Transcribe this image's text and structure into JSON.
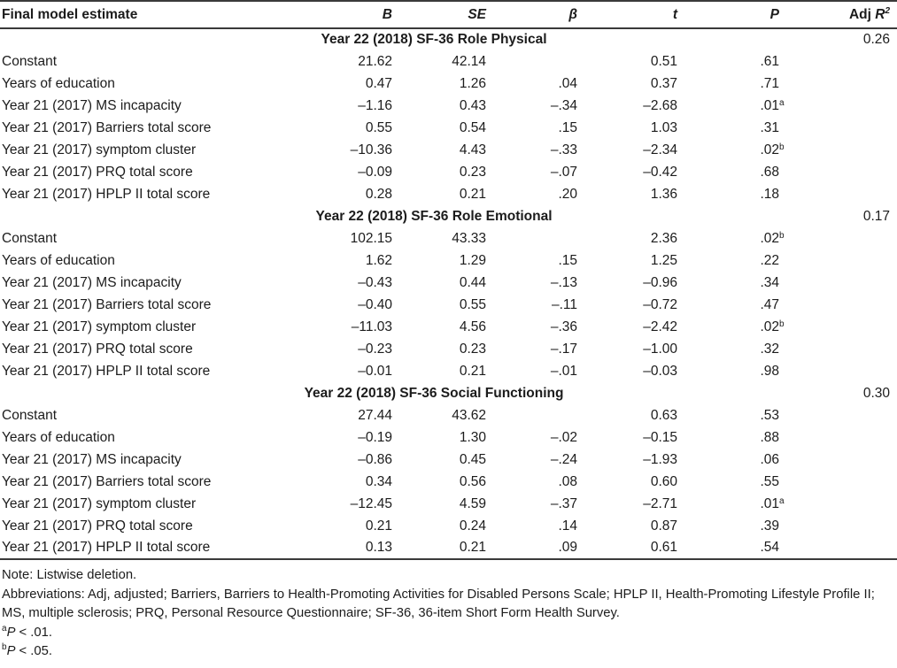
{
  "table": {
    "header": {
      "label": "Final model estimate",
      "b": "B",
      "se": "SE",
      "beta": "β",
      "t": "t",
      "p": "P",
      "adj": "Adj",
      "r": "R",
      "r_sup": "2"
    },
    "sections": [
      {
        "title": "Year 22 (2018) SF-36 Role Physical",
        "adj_r2": "0.26",
        "rows": [
          {
            "label": "Constant",
            "b": "21.62",
            "se": "42.14",
            "beta": "",
            "t": "0.51",
            "p": ".61",
            "p_sup": ""
          },
          {
            "label": "Years of education",
            "b": "0.47",
            "se": "1.26",
            "beta": ".04",
            "t": "0.37",
            "p": ".71",
            "p_sup": ""
          },
          {
            "label": "Year 21 (2017) MS incapacity",
            "b": "–1.16",
            "se": "0.43",
            "beta": "–.34",
            "t": "–2.68",
            "p": ".01",
            "p_sup": "a"
          },
          {
            "label": "Year 21 (2017) Barriers total score",
            "b": "0.55",
            "se": "0.54",
            "beta": ".15",
            "t": "1.03",
            "p": ".31",
            "p_sup": ""
          },
          {
            "label": "Year 21 (2017) symptom cluster",
            "b": "–10.36",
            "se": "4.43",
            "beta": "–.33",
            "t": "–2.34",
            "p": ".02",
            "p_sup": "b"
          },
          {
            "label": "Year 21 (2017) PRQ total score",
            "b": "–0.09",
            "se": "0.23",
            "beta": "–.07",
            "t": "–0.42",
            "p": ".68",
            "p_sup": ""
          },
          {
            "label": "Year 21 (2017) HPLP II total score",
            "b": "0.28",
            "se": "0.21",
            "beta": ".20",
            "t": "1.36",
            "p": ".18",
            "p_sup": ""
          }
        ]
      },
      {
        "title": "Year 22 (2018) SF-36 Role Emotional",
        "adj_r2": "0.17",
        "rows": [
          {
            "label": "Constant",
            "b": "102.15",
            "se": "43.33",
            "beta": "",
            "t": "2.36",
            "p": ".02",
            "p_sup": "b"
          },
          {
            "label": "Years of education",
            "b": "1.62",
            "se": "1.29",
            "beta": ".15",
            "t": "1.25",
            "p": ".22",
            "p_sup": ""
          },
          {
            "label": "Year 21 (2017) MS incapacity",
            "b": "–0.43",
            "se": "0.44",
            "beta": "–.13",
            "t": "–0.96",
            "p": ".34",
            "p_sup": ""
          },
          {
            "label": "Year 21 (2017) Barriers total score",
            "b": "–0.40",
            "se": "0.55",
            "beta": "–.11",
            "t": "–0.72",
            "p": ".47",
            "p_sup": ""
          },
          {
            "label": "Year 21 (2017) symptom cluster",
            "b": "–11.03",
            "se": "4.56",
            "beta": "–.36",
            "t": "–2.42",
            "p": ".02",
            "p_sup": "b"
          },
          {
            "label": "Year 21 (2017) PRQ total score",
            "b": "–0.23",
            "se": "0.23",
            "beta": "–.17",
            "t": "–1.00",
            "p": ".32",
            "p_sup": ""
          },
          {
            "label": "Year 21 (2017) HPLP II total score",
            "b": "–0.01",
            "se": "0.21",
            "beta": "–.01",
            "t": "–0.03",
            "p": ".98",
            "p_sup": ""
          }
        ]
      },
      {
        "title": "Year 22 (2018) SF-36 Social Functioning",
        "adj_r2": "0.30",
        "rows": [
          {
            "label": "Constant",
            "b": "27.44",
            "se": "43.62",
            "beta": "",
            "t": "0.63",
            "p": ".53",
            "p_sup": ""
          },
          {
            "label": "Years of education",
            "b": "–0.19",
            "se": "1.30",
            "beta": "–.02",
            "t": "–0.15",
            "p": ".88",
            "p_sup": ""
          },
          {
            "label": "Year 21 (2017) MS incapacity",
            "b": "–0.86",
            "se": "0.45",
            "beta": "–.24",
            "t": "–1.93",
            "p": ".06",
            "p_sup": ""
          },
          {
            "label": "Year 21 (2017) Barriers total score",
            "b": "0.34",
            "se": "0.56",
            "beta": ".08",
            "t": "0.60",
            "p": ".55",
            "p_sup": ""
          },
          {
            "label": "Year 21 (2017) symptom cluster",
            "b": "–12.45",
            "se": "4.59",
            "beta": "–.37",
            "t": "–2.71",
            "p": ".01",
            "p_sup": "a"
          },
          {
            "label": "Year 21 (2017) PRQ total score",
            "b": "0.21",
            "se": "0.24",
            "beta": ".14",
            "t": "0.87",
            "p": ".39",
            "p_sup": ""
          },
          {
            "label": "Year 21 (2017) HPLP II total score",
            "b": "0.13",
            "se": "0.21",
            "beta": ".09",
            "t": "0.61",
            "p": ".54",
            "p_sup": ""
          }
        ]
      }
    ]
  },
  "notes": {
    "note": "Note: Listwise deletion.",
    "abbreviations": "Abbreviations: Adj, adjusted; Barriers, Barriers to Health-Promoting Activities for Disabled Persons Scale; HPLP II, Health-Promoting Lifestyle Profile II; MS, multiple sclerosis; PRQ, Personal Resource Questionnaire; SF-36, 36-item Short Form Health Survey.",
    "fn_a_sup": "a",
    "fn_a_p": "P",
    "fn_a_rest": " < .01.",
    "fn_b_sup": "b",
    "fn_b_p": "P",
    "fn_b_rest": " < .05."
  }
}
